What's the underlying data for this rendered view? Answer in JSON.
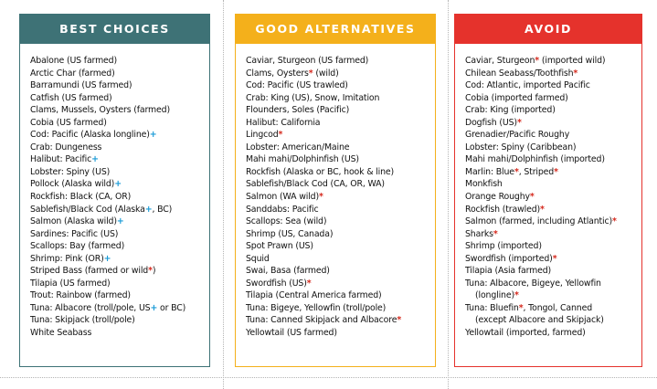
{
  "symbols": {
    "plus": "+",
    "star": "*"
  },
  "colors": {
    "best_header": "#3e7276",
    "good_header": "#f4b01b",
    "avoid_header": "#e5322c",
    "plus_symbol": "#1a9bd7",
    "star_symbol": "#d52a1e"
  },
  "columns": [
    {
      "id": "best",
      "title": "BEST CHOICES",
      "items": [
        {
          "segments": [
            {
              "text": "Abalone (US farmed)"
            }
          ]
        },
        {
          "segments": [
            {
              "text": "Arctic Char (farmed)"
            }
          ]
        },
        {
          "segments": [
            {
              "text": "Barramundi (US farmed)"
            }
          ]
        },
        {
          "segments": [
            {
              "text": "Catfish (US farmed)"
            }
          ]
        },
        {
          "segments": [
            {
              "text": "Clams, Mussels, Oysters (farmed)"
            }
          ]
        },
        {
          "segments": [
            {
              "text": "Cobia (US farmed)"
            }
          ]
        },
        {
          "segments": [
            {
              "text": "Cod: Pacific (Alaska longline)"
            },
            {
              "mark": "plus"
            }
          ]
        },
        {
          "segments": [
            {
              "text": "Crab: Dungeness"
            }
          ]
        },
        {
          "segments": [
            {
              "text": "Halibut: Pacific"
            },
            {
              "mark": "plus"
            }
          ]
        },
        {
          "segments": [
            {
              "text": "Lobster: Spiny (US)"
            }
          ]
        },
        {
          "segments": [
            {
              "text": "Pollock (Alaska wild)"
            },
            {
              "mark": "plus"
            }
          ]
        },
        {
          "segments": [
            {
              "text": "Rockfish: Black (CA, OR)"
            }
          ]
        },
        {
          "segments": [
            {
              "text": "Sablefish/Black Cod (Alaska"
            },
            {
              "mark": "plus"
            },
            {
              "text": ", BC)"
            }
          ]
        },
        {
          "segments": [
            {
              "text": "Salmon (Alaska wild)"
            },
            {
              "mark": "plus"
            }
          ]
        },
        {
          "segments": [
            {
              "text": "Sardines: Pacific (US)"
            }
          ]
        },
        {
          "segments": [
            {
              "text": "Scallops: Bay (farmed)"
            }
          ]
        },
        {
          "segments": [
            {
              "text": "Shrimp: Pink (OR)"
            },
            {
              "mark": "plus"
            }
          ]
        },
        {
          "segments": [
            {
              "text": "Striped Bass (farmed or wild"
            },
            {
              "mark": "star"
            },
            {
              "text": ")"
            }
          ]
        },
        {
          "segments": [
            {
              "text": "Tilapia (US farmed)"
            }
          ]
        },
        {
          "segments": [
            {
              "text": "Trout: Rainbow (farmed)"
            }
          ]
        },
        {
          "segments": [
            {
              "text": "Tuna: Albacore (troll/pole, US"
            },
            {
              "mark": "plus"
            },
            {
              "text": " or BC)"
            }
          ]
        },
        {
          "segments": [
            {
              "text": "Tuna: Skipjack (troll/pole)"
            }
          ]
        },
        {
          "segments": [
            {
              "text": "White Seabass"
            }
          ]
        }
      ]
    },
    {
      "id": "good",
      "title": "GOOD ALTERNATIVES",
      "items": [
        {
          "segments": [
            {
              "text": "Caviar, Sturgeon (US farmed)"
            }
          ]
        },
        {
          "segments": [
            {
              "text": "Clams, Oysters"
            },
            {
              "mark": "star"
            },
            {
              "text": " (wild)"
            }
          ]
        },
        {
          "segments": [
            {
              "text": "Cod: Pacific (US trawled)"
            }
          ]
        },
        {
          "segments": [
            {
              "text": "Crab: King (US), Snow, Imitation"
            }
          ]
        },
        {
          "segments": [
            {
              "text": "Flounders, Soles (Pacific)"
            }
          ]
        },
        {
          "segments": [
            {
              "text": "Halibut: California"
            }
          ]
        },
        {
          "segments": [
            {
              "text": "Lingcod"
            },
            {
              "mark": "star"
            }
          ]
        },
        {
          "segments": [
            {
              "text": "Lobster: American/Maine"
            }
          ]
        },
        {
          "segments": [
            {
              "text": "Mahi mahi/Dolphinfish (US)"
            }
          ]
        },
        {
          "segments": [
            {
              "text": "Rockfish (Alaska or BC, hook & line)"
            }
          ]
        },
        {
          "segments": [
            {
              "text": "Sablefish/Black Cod (CA, OR, WA)"
            }
          ]
        },
        {
          "segments": [
            {
              "text": "Salmon (WA wild)"
            },
            {
              "mark": "star"
            }
          ]
        },
        {
          "segments": [
            {
              "text": "Sanddabs: Pacific"
            }
          ]
        },
        {
          "segments": [
            {
              "text": "Scallops: Sea (wild)"
            }
          ]
        },
        {
          "segments": [
            {
              "text": "Shrimp (US, Canada)"
            }
          ]
        },
        {
          "segments": [
            {
              "text": "Spot Prawn (US)"
            }
          ]
        },
        {
          "segments": [
            {
              "text": "Squid"
            }
          ]
        },
        {
          "segments": [
            {
              "text": "Swai, Basa (farmed)"
            }
          ]
        },
        {
          "segments": [
            {
              "text": "Swordfish (US)"
            },
            {
              "mark": "star"
            }
          ]
        },
        {
          "segments": [
            {
              "text": "Tilapia (Central America farmed)"
            }
          ]
        },
        {
          "segments": [
            {
              "text": "Tuna: Bigeye, Yellowfin (troll/pole)"
            }
          ]
        },
        {
          "segments": [
            {
              "text": "Tuna: Canned Skipjack and Albacore"
            },
            {
              "mark": "star"
            }
          ]
        },
        {
          "segments": [
            {
              "text": "Yellowtail (US farmed)"
            }
          ]
        }
      ]
    },
    {
      "id": "avoid",
      "title": "AVOID",
      "items": [
        {
          "segments": [
            {
              "text": "Caviar, Sturgeon"
            },
            {
              "mark": "star"
            },
            {
              "text": " (imported wild)"
            }
          ]
        },
        {
          "segments": [
            {
              "text": "Chilean Seabass/Toothfish"
            },
            {
              "mark": "star"
            }
          ]
        },
        {
          "segments": [
            {
              "text": "Cod: Atlantic, imported Pacific"
            }
          ]
        },
        {
          "segments": [
            {
              "text": "Cobia (imported farmed)"
            }
          ]
        },
        {
          "segments": [
            {
              "text": "Crab: King (imported)"
            }
          ]
        },
        {
          "segments": [
            {
              "text": "Dogfish (US)"
            },
            {
              "mark": "star"
            }
          ]
        },
        {
          "segments": [
            {
              "text": "Grenadier/Pacific Roughy"
            }
          ]
        },
        {
          "segments": [
            {
              "text": "Lobster: Spiny (Caribbean)"
            }
          ]
        },
        {
          "segments": [
            {
              "text": "Mahi mahi/Dolphinfish (imported)"
            }
          ]
        },
        {
          "segments": [
            {
              "text": "Marlin: Blue"
            },
            {
              "mark": "star"
            },
            {
              "text": ", Striped"
            },
            {
              "mark": "star"
            }
          ]
        },
        {
          "segments": [
            {
              "text": "Monkfish"
            }
          ]
        },
        {
          "segments": [
            {
              "text": "Orange Roughy"
            },
            {
              "mark": "star"
            }
          ]
        },
        {
          "segments": [
            {
              "text": "Rockfish (trawled)"
            },
            {
              "mark": "star"
            }
          ]
        },
        {
          "segments": [
            {
              "text": "Salmon (farmed, including Atlantic)"
            },
            {
              "mark": "star"
            }
          ]
        },
        {
          "segments": [
            {
              "text": "Sharks"
            },
            {
              "mark": "star"
            }
          ]
        },
        {
          "segments": [
            {
              "text": "Shrimp (imported)"
            }
          ]
        },
        {
          "segments": [
            {
              "text": "Swordfish (imported)"
            },
            {
              "mark": "star"
            }
          ]
        },
        {
          "segments": [
            {
              "text": "Tilapia (Asia farmed)"
            }
          ]
        },
        {
          "segments": [
            {
              "text": "Tuna: Albacore, Bigeye, Yellowfin"
            }
          ]
        },
        {
          "segments": [
            {
              "text": "(longline)"
            },
            {
              "mark": "star"
            }
          ],
          "indent": true
        },
        {
          "segments": [
            {
              "text": "Tuna: Bluefin"
            },
            {
              "mark": "star"
            },
            {
              "text": ", Tongol, Canned"
            }
          ]
        },
        {
          "segments": [
            {
              "text": "(except Albacore and Skipjack)"
            }
          ],
          "indent": true
        },
        {
          "segments": [
            {
              "text": "Yellowtail (imported, farmed)"
            }
          ]
        }
      ]
    }
  ]
}
